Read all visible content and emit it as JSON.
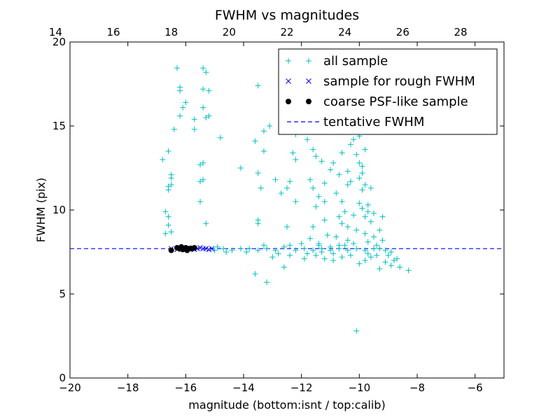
{
  "chart_data": {
    "type": "scatter",
    "title": "FWHM vs magnitudes",
    "xlabel": "magnitude (bottom:isnt / top:calib)",
    "ylabel": "FWHM (pix)",
    "xlim": [
      -20,
      -5
    ],
    "ylim": [
      0,
      20
    ],
    "x_ticks": [
      -20,
      -18,
      -16,
      -14,
      -12,
      -10,
      -8,
      -6
    ],
    "y_ticks": [
      0,
      5,
      10,
      15,
      20
    ],
    "top_axis": {
      "label_ticks": [
        14,
        16,
        18,
        20,
        22,
        24,
        26,
        28
      ],
      "offset_to_bottom": -34.5
    },
    "tentative_fwhm": 7.7,
    "legend": {
      "position": "top-right",
      "entries": [
        {
          "label": "all sample",
          "marker": "+",
          "color": "#00bfbf"
        },
        {
          "label": "sample for rough FWHM",
          "marker": "x",
          "color": "#0000ff"
        },
        {
          "label": "coarse PSF-like sample",
          "marker": "o",
          "color": "#000000"
        },
        {
          "label": "tentative FWHM",
          "marker": "--",
          "color": "#0000ff"
        }
      ]
    },
    "series": [
      {
        "name": "all sample",
        "color": "#00bfbf",
        "marker": "+",
        "points": [
          [
            -16.3,
            18.45
          ],
          [
            -15.4,
            18.45
          ],
          [
            -15.3,
            18.2
          ],
          [
            -16.2,
            17.3
          ],
          [
            -16.2,
            17.1
          ],
          [
            -15.4,
            17.2
          ],
          [
            -15.2,
            17.1
          ],
          [
            -16.0,
            16.4
          ],
          [
            -16.1,
            16.1
          ],
          [
            -15.4,
            16.1
          ],
          [
            -15.2,
            15.6
          ],
          [
            -15.3,
            15.5
          ],
          [
            -16.2,
            15.6
          ],
          [
            -15.7,
            15.4
          ],
          [
            -16.4,
            14.8
          ],
          [
            -15.7,
            14.8
          ],
          [
            -14.8,
            14.3
          ],
          [
            -16.6,
            13.5
          ],
          [
            -16.8,
            13.0
          ],
          [
            -15.5,
            12.7
          ],
          [
            -15.4,
            12.8
          ],
          [
            -16.5,
            12.1
          ],
          [
            -16.5,
            11.9
          ],
          [
            -16.5,
            11.5
          ],
          [
            -16.6,
            11.4
          ],
          [
            -15.4,
            11.8
          ],
          [
            -15.5,
            11.7
          ],
          [
            -16.6,
            11.2
          ],
          [
            -15.5,
            10.5
          ],
          [
            -16.7,
            9.9
          ],
          [
            -16.6,
            9.6
          ],
          [
            -16.6,
            9.1
          ],
          [
            -16.5,
            8.7
          ],
          [
            -16.7,
            8.6
          ],
          [
            -15.3,
            9.2
          ],
          [
            -14.1,
            12.5
          ],
          [
            -13.5,
            17.4
          ],
          [
            -13.3,
            14.7
          ],
          [
            -13.6,
            14.1
          ],
          [
            -13.3,
            13.5
          ],
          [
            -13.5,
            12.2
          ],
          [
            -13.4,
            11.3
          ],
          [
            -13.1,
            15.0
          ],
          [
            -12.9,
            11.8
          ],
          [
            -12.7,
            11.0
          ],
          [
            -12.5,
            11.3
          ],
          [
            -12.4,
            11.7
          ],
          [
            -12.2,
            10.5
          ],
          [
            -13.5,
            9.4
          ],
          [
            -13.5,
            9.2
          ],
          [
            -13.6,
            6.2
          ],
          [
            -13.2,
            5.7
          ],
          [
            -12.6,
            6.6
          ],
          [
            -12.5,
            9.0
          ],
          [
            -12.3,
            13.4
          ],
          [
            -12.2,
            13.0
          ],
          [
            -12.2,
            14.5
          ],
          [
            -11.8,
            14.2
          ],
          [
            -11.6,
            13.6
          ],
          [
            -11.5,
            13.2
          ],
          [
            -11.3,
            12.9
          ],
          [
            -11.0,
            12.4
          ],
          [
            -10.7,
            12.1
          ],
          [
            -11.7,
            11.8
          ],
          [
            -11.6,
            11.3
          ],
          [
            -11.2,
            11.6
          ],
          [
            -11.4,
            10.8
          ],
          [
            -11.2,
            10.5
          ],
          [
            -11.5,
            10.2
          ],
          [
            -10.8,
            11.0
          ],
          [
            -10.6,
            10.5
          ],
          [
            -10.4,
            11.5
          ],
          [
            -10.3,
            13.9
          ],
          [
            -10.1,
            13.3
          ],
          [
            -10.2,
            14.2
          ],
          [
            -9.9,
            14.8
          ],
          [
            -10.0,
            14.4
          ],
          [
            -9.8,
            13.6
          ],
          [
            -10.0,
            12.8
          ],
          [
            -9.9,
            12.6
          ],
          [
            -10.3,
            11.7
          ],
          [
            -9.9,
            11.2
          ],
          [
            -9.8,
            11.5
          ],
          [
            -9.6,
            11.3
          ],
          [
            -9.7,
            10.3
          ],
          [
            -9.9,
            10.1
          ],
          [
            -10.5,
            9.9
          ],
          [
            -10.2,
            9.7
          ],
          [
            -9.8,
            9.6
          ],
          [
            -9.6,
            9.3
          ],
          [
            -9.5,
            9.8
          ],
          [
            -10.6,
            9.2
          ],
          [
            -10.4,
            9.0
          ],
          [
            -10.1,
            8.8
          ],
          [
            -9.8,
            8.6
          ],
          [
            -9.5,
            8.4
          ],
          [
            -9.3,
            8.8
          ],
          [
            -9.2,
            8.2
          ],
          [
            -9.4,
            7.9
          ],
          [
            -9.1,
            7.6
          ],
          [
            -9.0,
            7.3
          ],
          [
            -8.8,
            7.0
          ],
          [
            -8.9,
            6.7
          ],
          [
            -8.6,
            6.6
          ],
          [
            -8.3,
            6.4
          ],
          [
            -9.1,
            6.9
          ],
          [
            -9.3,
            6.5
          ],
          [
            -9.6,
            7.2
          ],
          [
            -9.8,
            7.0
          ],
          [
            -10.0,
            6.8
          ],
          [
            -10.3,
            7.3
          ],
          [
            -10.6,
            7.2
          ],
          [
            -10.9,
            7.0
          ],
          [
            -11.2,
            7.1
          ],
          [
            -10.1,
            2.8
          ],
          [
            -10.8,
            8.4
          ],
          [
            -11.1,
            8.5
          ],
          [
            -11.4,
            8.0
          ],
          [
            -11.7,
            8.3
          ],
          [
            -12.0,
            8.0
          ],
          [
            -10.4,
            8.2
          ],
          [
            -10.7,
            7.9
          ],
          [
            -11.0,
            7.8
          ],
          [
            -11.3,
            7.5
          ],
          [
            -12.6,
            7.8
          ],
          [
            -12.9,
            7.6
          ],
          [
            -13.2,
            7.7
          ],
          [
            -13.5,
            7.6
          ],
          [
            -13.8,
            7.7
          ],
          [
            -14.1,
            7.7
          ],
          [
            -14.4,
            7.6
          ],
          [
            -14.7,
            7.7
          ],
          [
            -15.0,
            7.6
          ],
          [
            -12.2,
            7.6
          ],
          [
            -11.9,
            7.7
          ],
          [
            -11.6,
            7.6
          ],
          [
            -11.3,
            7.7
          ],
          [
            -11.0,
            7.6
          ],
          [
            -10.7,
            7.7
          ],
          [
            -10.4,
            7.6
          ],
          [
            -10.1,
            7.7
          ],
          [
            -9.8,
            7.6
          ],
          [
            -9.5,
            7.7
          ],
          [
            -14.9,
            7.8
          ],
          [
            -14.6,
            7.5
          ],
          [
            -13.9,
            7.5
          ],
          [
            -13.3,
            7.9
          ],
          [
            -12.8,
            7.4
          ],
          [
            -12.4,
            7.9
          ],
          [
            -11.8,
            7.4
          ],
          [
            -11.4,
            7.9
          ],
          [
            -10.9,
            7.4
          ],
          [
            -10.5,
            7.9
          ],
          [
            -9.7,
            7.4
          ],
          [
            -9.3,
            7.7
          ],
          [
            -13.0,
            7.2
          ],
          [
            -12.4,
            7.3
          ],
          [
            -11.9,
            7.1
          ],
          [
            -11.5,
            7.3
          ],
          [
            -10.2,
            8.0
          ],
          [
            -9.7,
            8.1
          ],
          [
            -9.4,
            7.3
          ],
          [
            -8.9,
            7.5
          ],
          [
            -8.7,
            7.1
          ],
          [
            -11.2,
            9.4
          ],
          [
            -11.6,
            9.0
          ],
          [
            -10.7,
            9.6
          ],
          [
            -10.0,
            10.4
          ],
          [
            -9.7,
            9.9
          ],
          [
            -9.2,
            9.6
          ],
          [
            -10.6,
            13.4
          ],
          [
            -10.9,
            12.8
          ],
          [
            -10.4,
            12.3
          ],
          [
            -10.0,
            11.9
          ],
          [
            -9.9,
            12.2
          ]
        ]
      },
      {
        "name": "sample for rough FWHM",
        "color": "#0000ff",
        "marker": "x",
        "points": [
          [
            -16.5,
            7.7
          ],
          [
            -16.3,
            7.65
          ],
          [
            -16.1,
            7.7
          ],
          [
            -15.9,
            7.75
          ],
          [
            -15.8,
            7.7
          ],
          [
            -15.7,
            7.65
          ],
          [
            -15.6,
            7.7
          ],
          [
            -15.5,
            7.75
          ],
          [
            -15.4,
            7.7
          ],
          [
            -15.3,
            7.7
          ],
          [
            -15.2,
            7.65
          ],
          [
            -15.1,
            7.7
          ]
        ]
      },
      {
        "name": "coarse PSF-like sample",
        "color": "#000000",
        "marker": "o",
        "points": [
          [
            -16.5,
            7.6
          ],
          [
            -16.3,
            7.75
          ],
          [
            -16.2,
            7.7
          ],
          [
            -16.1,
            7.65
          ],
          [
            -16.0,
            7.75
          ],
          [
            -15.9,
            7.7
          ],
          [
            -15.8,
            7.7
          ],
          [
            -15.7,
            7.75
          ],
          [
            -16.15,
            7.8
          ],
          [
            -15.95,
            7.6
          ]
        ]
      }
    ]
  }
}
